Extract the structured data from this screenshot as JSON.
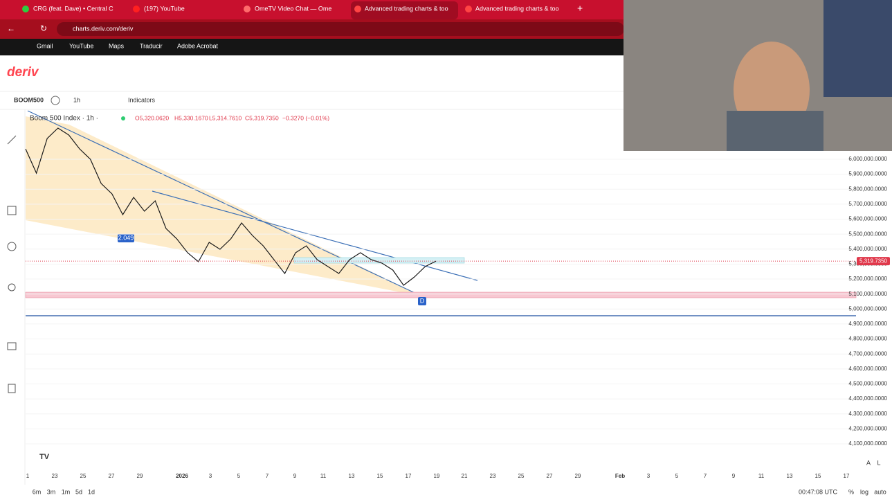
{
  "browser": {
    "tabs": [
      "CRG (feat. Dave) • Central C",
      "(197) YouTube",
      "OmeTV Video Chat — Ome",
      "Advanced trading charts & too",
      "Advanced trading charts & too"
    ],
    "url": "charts.deriv.com/deriv",
    "bookmarks": [
      "Gmail",
      "YouTube",
      "Maps",
      "Traducir",
      "Adobe Acrobat"
    ]
  },
  "app": {
    "logo": "deriv",
    "symbol": "BOOM500",
    "interval": "1h",
    "indicators": "Indicators"
  },
  "chart_data": {
    "type": "line",
    "title": "Boom 500 Index · 1h ·",
    "ohlc": [
      "O5,320.0620",
      "H5,330.1670",
      "L5,314.7610",
      "C5,319.7350",
      "−0.3270 (−0.01%)"
    ],
    "color": "#1a1a1a",
    "values": [
      6069000,
      5907500,
      6138700,
      6208000,
      6161800,
      6069300,
      6000000,
      5838200,
      5768800,
      5630100,
      5745700,
      5653300,
      5722600,
      5537700,
      5468300,
      5375900,
      5315800,
      5445200,
      5399000,
      5468300,
      5574700,
      5491400,
      5422100,
      5329600,
      5237200,
      5375900,
      5422100,
      5329600,
      5283400,
      5237200,
      5329600,
      5375900,
      5329600,
      5306500,
      5260300,
      5158600,
      5214100,
      5283400,
      5319735
    ],
    "last_price_label": "5,319.7350",
    "annotations": [
      "2.049",
      "D"
    ],
    "xtick_labels": [
      "1",
      "23",
      "25",
      "27",
      "29",
      "2026",
      "3",
      "5",
      "7",
      "9",
      "11",
      "13",
      "15",
      "17",
      "19",
      "21",
      "23",
      "25",
      "27",
      "29",
      "Feb",
      "3",
      "5",
      "7",
      "9",
      "11",
      "13",
      "15",
      "17"
    ],
    "ylim": [
      3942700,
      6323600
    ],
    "yticks": [
      {
        "value": 6000000,
        "label": "6,000,000.0000"
      },
      {
        "value": 5900000,
        "label": "5,900,000.0000"
      },
      {
        "value": 5800000,
        "label": "5,800,000.0000"
      },
      {
        "value": 5700000,
        "label": "5,700,000.0000"
      },
      {
        "value": 5600000,
        "label": "5,600,000.0000"
      },
      {
        "value": 5500000,
        "label": "5,500,000.0000"
      },
      {
        "value": 5400000,
        "label": "5,400,000.0000"
      },
      {
        "value": 5300000,
        "label": "5,300,000.0000"
      },
      {
        "value": 5200000,
        "label": "5,200,000.0000"
      },
      {
        "value": 5100000,
        "label": "5,100,000.0000"
      },
      {
        "value": 5000000,
        "label": "5,000,000.0000"
      },
      {
        "value": 4900000,
        "label": "4,900,000.0000"
      },
      {
        "value": 4800000,
        "label": "4,800,000.0000"
      },
      {
        "value": 4700000,
        "label": "4,700,000.0000"
      },
      {
        "value": 4600000,
        "label": "4,600,000.0000"
      },
      {
        "value": 4500000,
        "label": "4,500,000.0000"
      },
      {
        "value": 4400000,
        "label": "4,400,000.0000"
      },
      {
        "value": 4300000,
        "label": "4,300,000.0000"
      },
      {
        "value": 4200000,
        "label": "4,200,000.0000"
      },
      {
        "value": 4100000,
        "label": "4,100,000.0000"
      }
    ],
    "grid": true
  },
  "footer": {
    "ranges": [
      "6m",
      "3m",
      "1m",
      "5d",
      "1d"
    ],
    "time": "00:47:08 UTC",
    "options": [
      "%",
      "log",
      "auto"
    ],
    "scale_buttons": [
      "A",
      "L"
    ]
  }
}
